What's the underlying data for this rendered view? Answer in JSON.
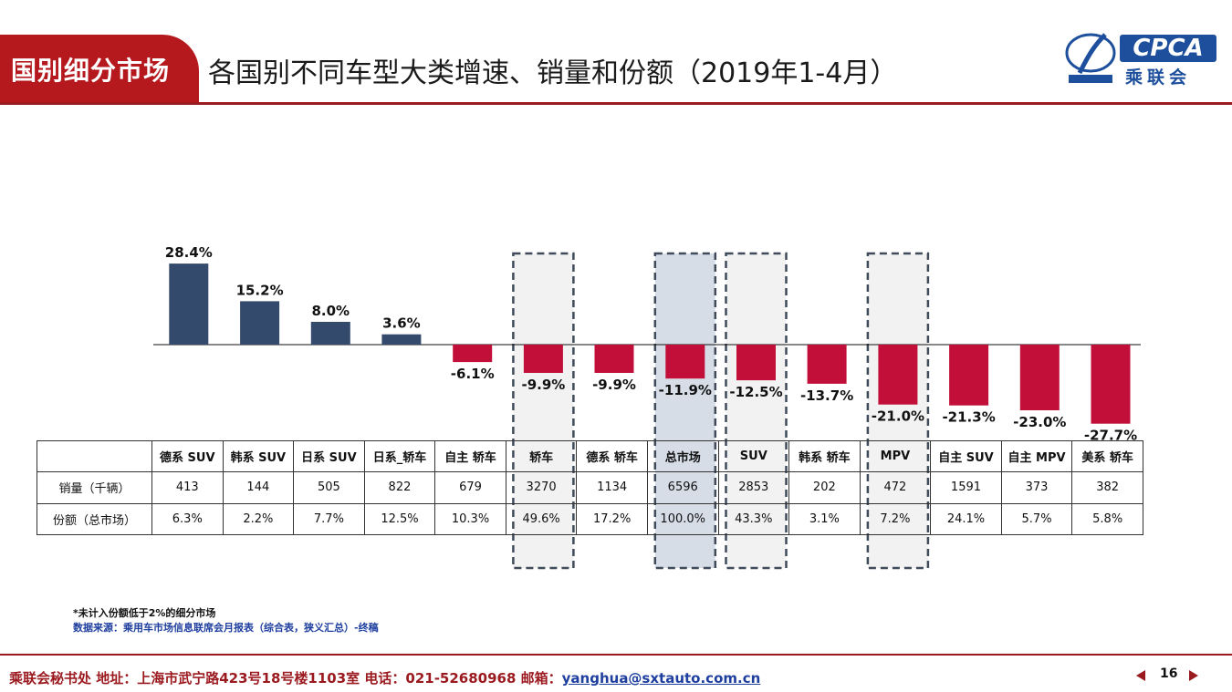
{
  "header": {
    "tag": "国别细分市场",
    "title": "各国别不同车型大类增速、销量和份额（2019年1-4月）",
    "logo_text": "CPCA",
    "logo_cn": "乘联会"
  },
  "colors": {
    "positive": "#344a6c",
    "negative": "#c10f3a",
    "highlight_fill": "#f2f2f2",
    "total_fill": "#d6dde7",
    "dash": "#3f4b5b"
  },
  "chart_data": {
    "type": "bar",
    "categories": [
      "德系 SUV",
      "韩系 SUV",
      "日系 SUV",
      "日系_轿车",
      "自主 轿车",
      "轿车",
      "德系 轿车",
      "总市场",
      "SUV",
      "韩系 轿车",
      "MPV",
      "自主 SUV",
      "自主 MPV",
      "美系 轿车"
    ],
    "values": [
      28.4,
      15.2,
      8.0,
      3.6,
      -6.1,
      -9.9,
      -9.9,
      -11.9,
      -12.5,
      -13.7,
      -21.0,
      -21.3,
      -23.0,
      -27.7
    ],
    "value_labels": [
      "28.4%",
      "15.2%",
      "8.0%",
      "3.6%",
      "-6.1%",
      "-9.9%",
      "-9.9%",
      "-11.9%",
      "-12.5%",
      "-13.7%",
      "-21.0%",
      "-21.3%",
      "-23.0%",
      "-27.7%"
    ],
    "unit": "%",
    "highlighted": [
      "轿车",
      "总市场",
      "SUV",
      "MPV"
    ],
    "title": "",
    "xlabel": "",
    "ylabel": ""
  },
  "table": {
    "rows": [
      {
        "label": "销量（千辆）",
        "values": [
          "413",
          "144",
          "505",
          "822",
          "679",
          "3270",
          "1134",
          "6596",
          "2853",
          "202",
          "472",
          "1591",
          "373",
          "382"
        ]
      },
      {
        "label": "份额（总市场）",
        "values": [
          "6.3%",
          "2.2%",
          "7.7%",
          "12.5%",
          "10.3%",
          "49.6%",
          "17.2%",
          "100.0%",
          "43.3%",
          "3.1%",
          "7.2%",
          "24.1%",
          "5.7%",
          "5.8%"
        ]
      }
    ]
  },
  "notes": {
    "note1": "*未计入份额低于2%的细分市场",
    "note2": "数据来源：乘用车市场信息联席会月报表（综合表，狭义汇总）-终稿"
  },
  "footer": {
    "text": "乘联会秘书处   地址：上海市武宁路423号18号楼1103室  电话：021-52680968   邮箱：",
    "email": "yanghua@sxtauto.com.cn",
    "page": "16"
  }
}
